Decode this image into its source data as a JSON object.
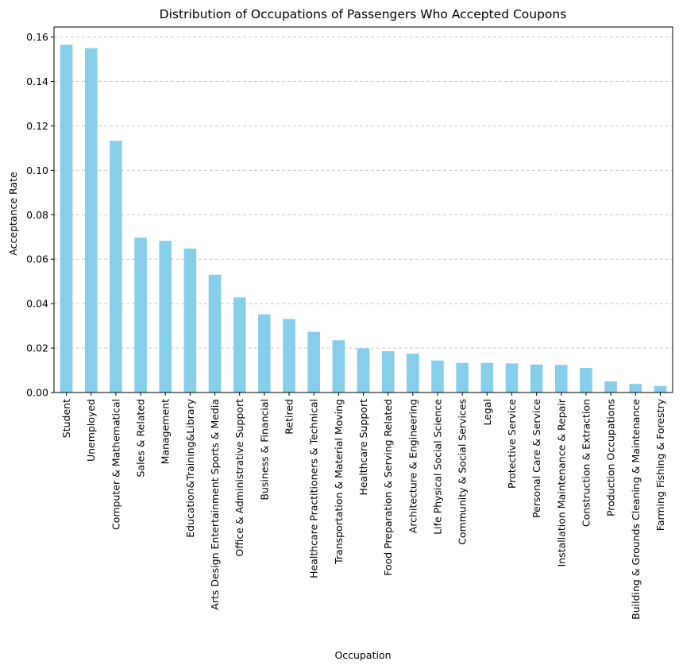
{
  "chart_data": {
    "type": "bar",
    "title": "Distribution of Occupations of Passengers Who Accepted Coupons",
    "xlabel": "Occupation",
    "ylabel": "Acceptance Rate",
    "ylim": [
      0,
      0.1645
    ],
    "yticks": [
      0.0,
      0.02,
      0.04,
      0.06,
      0.08,
      0.1,
      0.12,
      0.14,
      0.16
    ],
    "ytick_labels": [
      "0.00",
      "0.02",
      "0.04",
      "0.06",
      "0.08",
      "0.10",
      "0.12",
      "0.14",
      "0.16"
    ],
    "grid": "y-dashed",
    "bar_color": "#87ceeb",
    "categories": [
      "Student",
      "Unemployed",
      "Computer & Mathematical",
      "Sales & Related",
      "Management",
      "Education&Training&Library",
      "Arts Design Entertainment Sports & Media",
      "Office & Administrative Support",
      "Business & Financial",
      "Retired",
      "Healthcare Practitioners & Technical",
      "Transportation & Material Moving",
      "Healthcare Support",
      "Food Preparation & Serving Related",
      "Architecture & Engineering",
      "Life Physical Social Science",
      "Community & Social Services",
      "Legal",
      "Protective Service",
      "Personal Care & Service",
      "Installation Maintenance & Repair",
      "Construction & Extraction",
      "Production Occupations",
      "Building & Grounds Cleaning & Maintenance",
      "Farming Fishing & Forestry"
    ],
    "values": [
      0.1565,
      0.155,
      0.1133,
      0.0697,
      0.0683,
      0.0648,
      0.053,
      0.0428,
      0.0352,
      0.0331,
      0.0273,
      0.0235,
      0.0199,
      0.0186,
      0.0175,
      0.0144,
      0.0133,
      0.0133,
      0.0131,
      0.0126,
      0.0124,
      0.0111,
      0.005,
      0.0039,
      0.0029
    ]
  }
}
